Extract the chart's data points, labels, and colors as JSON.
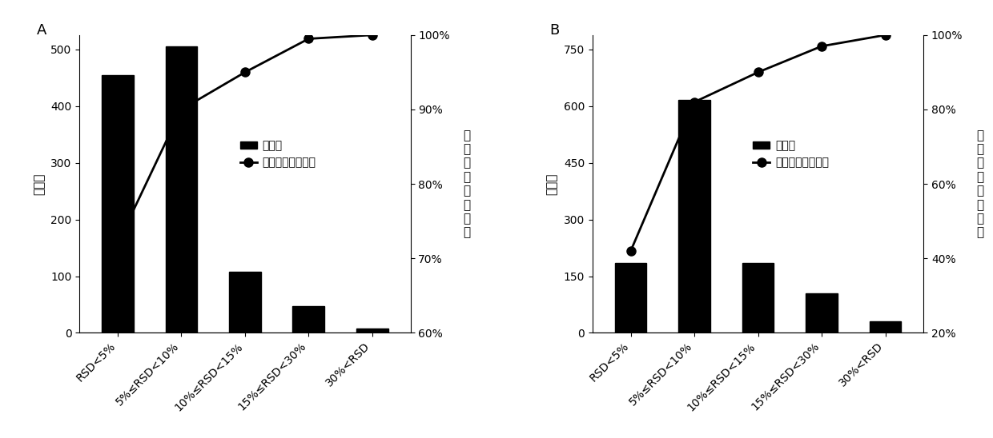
{
  "panel_A": {
    "label": "A",
    "categories": [
      "RSD<5%",
      "5%≤RSD<10%",
      "10%≤RSD<15%",
      "15%≤RSD<30%",
      "30%<RSD"
    ],
    "bar_values": [
      455,
      505,
      108,
      47,
      8
    ],
    "line_values": [
      0.72,
      0.9,
      0.95,
      0.995,
      1.0
    ],
    "ylim_left": [
      0,
      525
    ],
    "ylim_right": [
      0.6,
      1.0
    ],
    "yticks_left": [
      0,
      100,
      200,
      300,
      400,
      500
    ],
    "yticks_right": [
      0.6,
      0.7,
      0.8,
      0.9,
      1.0
    ],
    "ytick_right_labels": [
      "60%",
      "70%",
      "80%",
      "90%",
      "100%"
    ],
    "ylabel_left": "峰个数",
    "ylabel_right": "累计峰面积百分比"
  },
  "panel_B": {
    "label": "B",
    "categories": [
      "RSD<5%",
      "5%≤RSD<10%",
      "10%≤RSD<15%",
      "15%≤RSD<30%",
      "30%<RSD"
    ],
    "bar_values": [
      185,
      615,
      185,
      105,
      30
    ],
    "line_values": [
      0.42,
      0.82,
      0.9,
      0.97,
      1.0
    ],
    "ylim_left": [
      0,
      787.5
    ],
    "ylim_right": [
      0.2,
      1.0
    ],
    "yticks_left": [
      0,
      150,
      300,
      450,
      600,
      750
    ],
    "yticks_right": [
      0.2,
      0.4,
      0.6,
      0.8,
      1.0
    ],
    "ytick_right_labels": [
      "20%",
      "40%",
      "60%",
      "80%",
      "100%"
    ],
    "ylabel_left": "峰个数",
    "ylabel_right": "累计峰面积百分比"
  },
  "legend_bar": "峰个数",
  "legend_line": "累计峰面积百分比",
  "bar_color": "#000000",
  "line_color": "#000000",
  "marker": "o",
  "marker_size": 8,
  "line_width": 2.0,
  "bar_width": 0.5,
  "font_size_label": 11,
  "font_size_tick": 10,
  "font_size_panel": 13
}
